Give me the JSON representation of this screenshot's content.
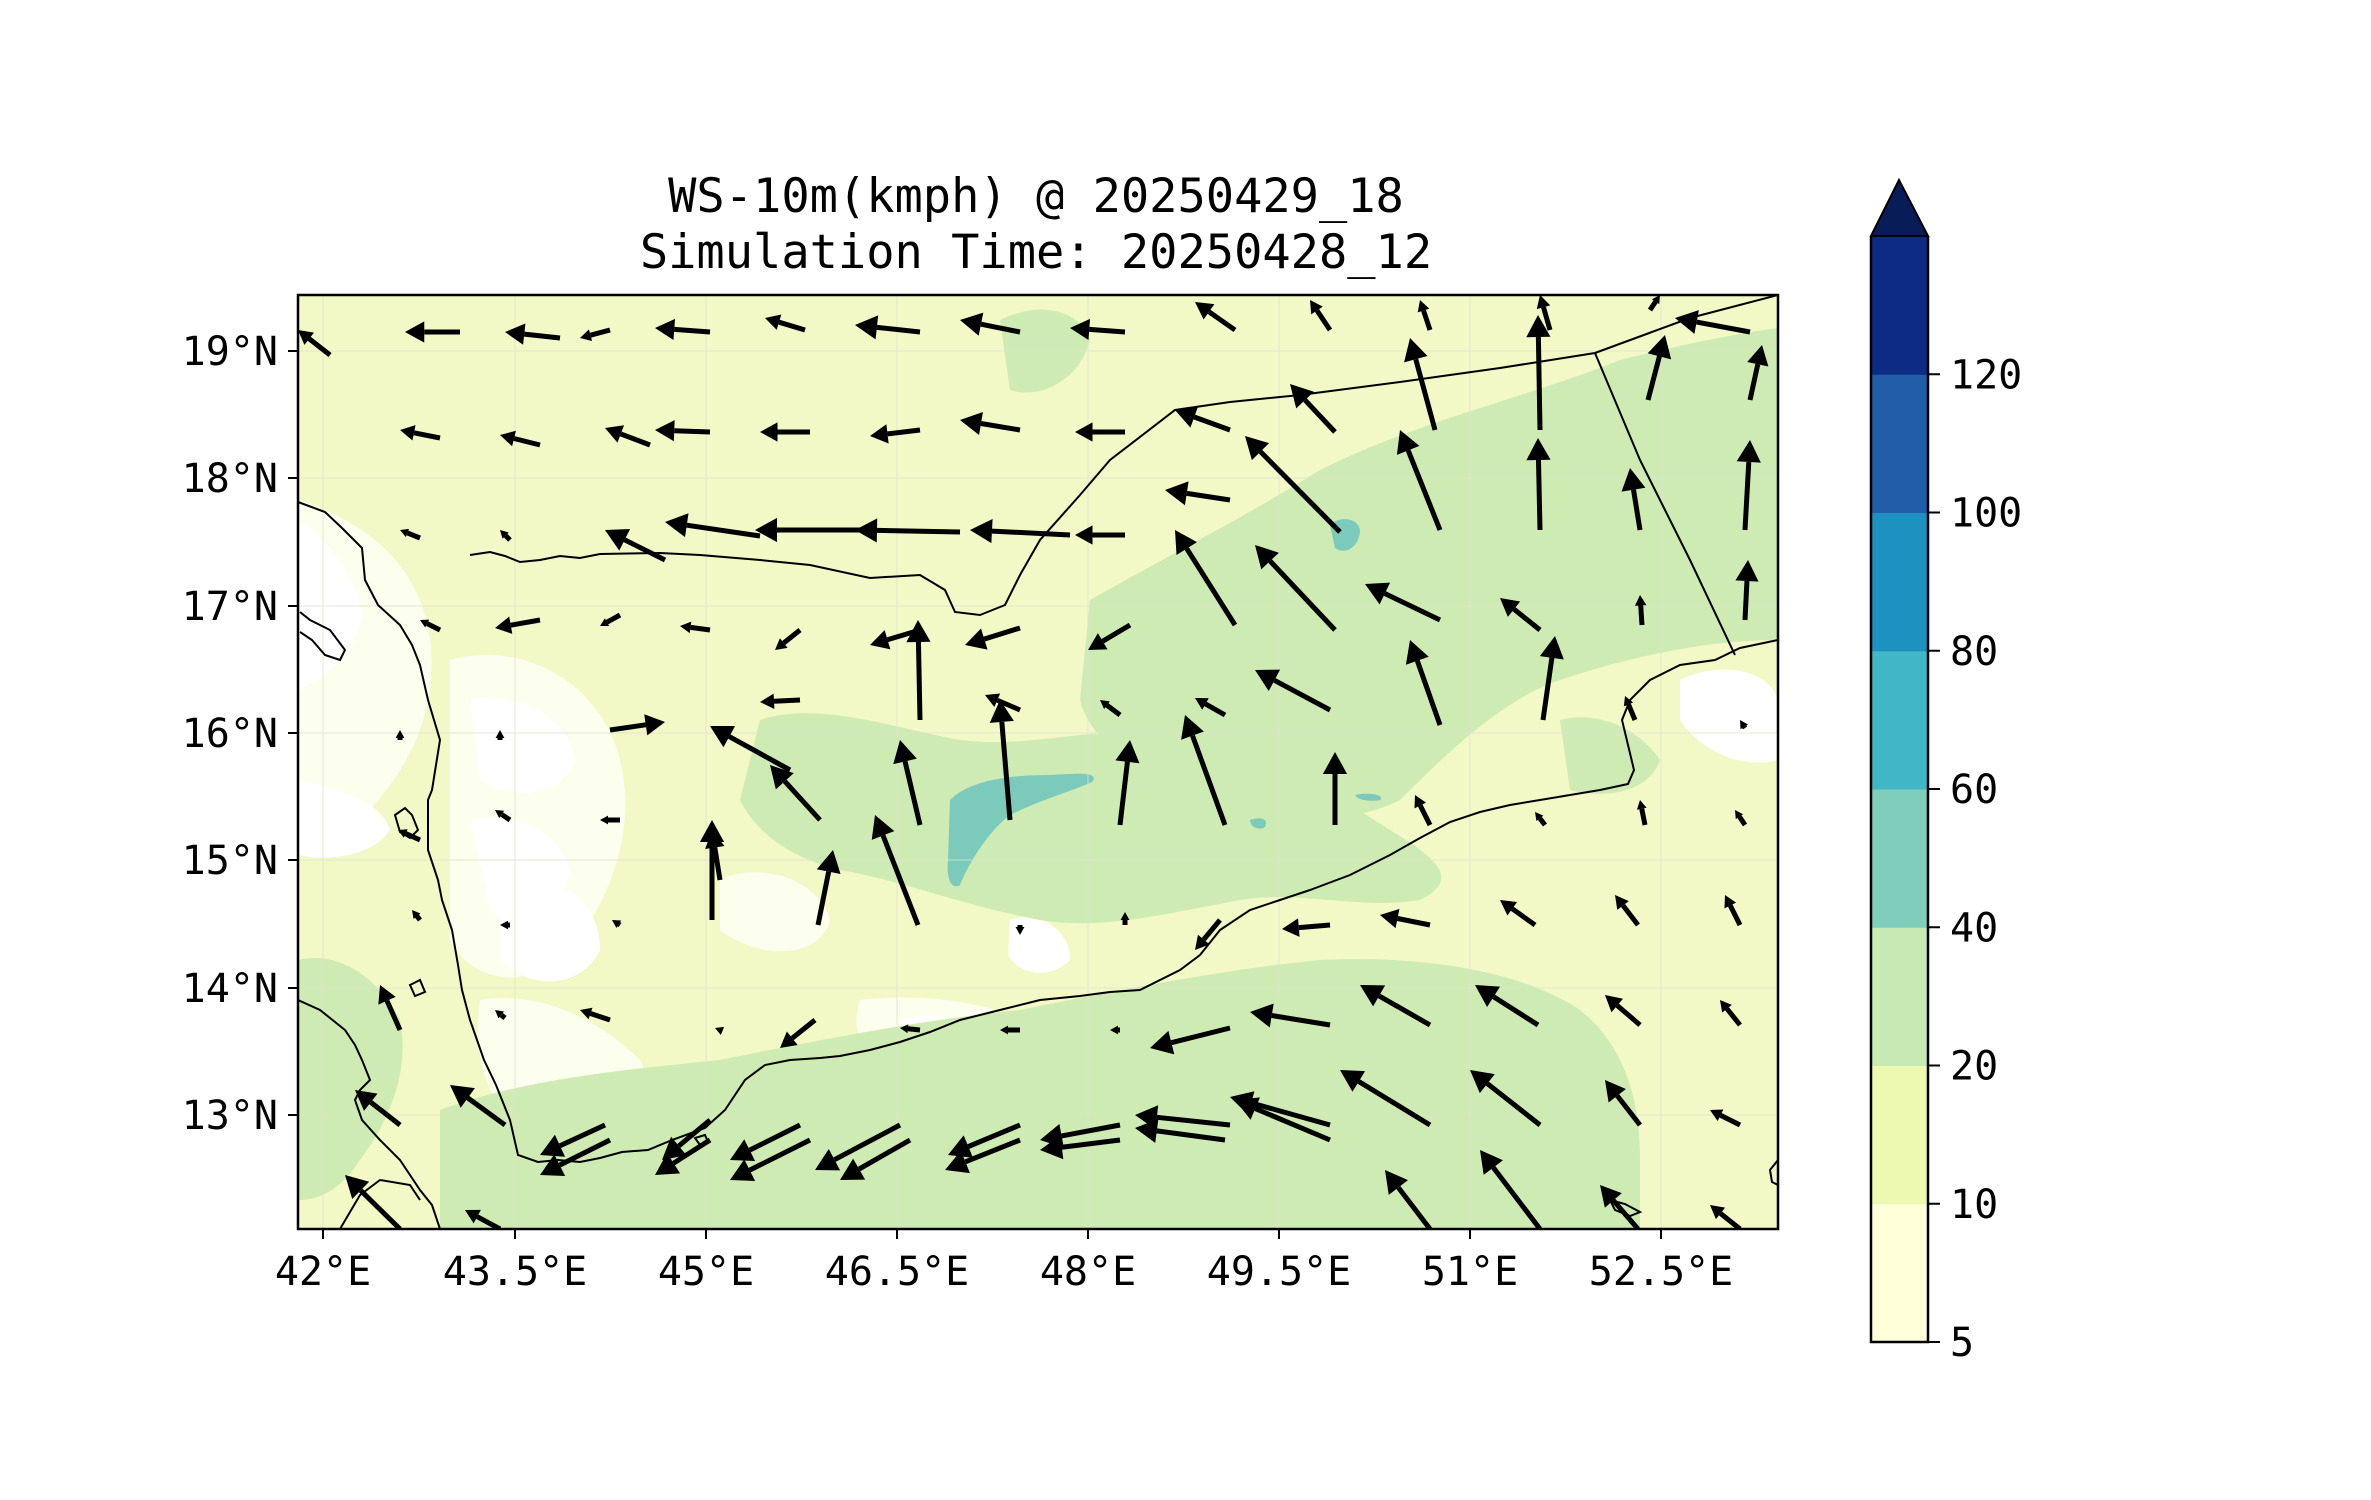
{
  "title_lines": [
    "WS-10m(kmph) @ 20250429_18",
    "Simulation Time: 20250428_12"
  ],
  "lon_ticks": [
    "42°E",
    "43.5°E",
    "45°E",
    "46.5°E",
    "48°E",
    "49.5°E",
    "51°E",
    "52.5°E"
  ],
  "lat_ticks": [
    "13°N",
    "14°N",
    "15°N",
    "16°N",
    "17°N",
    "18°N",
    "19°N"
  ],
  "colorbar": {
    "levels": [
      5,
      10,
      20,
      40,
      60,
      80,
      100,
      120
    ],
    "tick_labels": [
      "5",
      "10",
      "20",
      "40",
      "60",
      "80",
      "100",
      "120"
    ],
    "colors": [
      "#ffffd9",
      "#edf8b1",
      "#c7e9b4",
      "#7fcdbb",
      "#41b6c4",
      "#1d91c0",
      "#225ea8",
      "#0c2c84"
    ],
    "extend_color": "#081d58",
    "extend": "max"
  },
  "map": {
    "field_colors": {
      "calm": "#ffffff",
      "low": "#f3f9c8",
      "mid": "#eff8b8",
      "high": "#cfecb4",
      "peak": "#79c9b9"
    },
    "coastline_color": "#000000",
    "arrow_color": "#000000"
  }
}
